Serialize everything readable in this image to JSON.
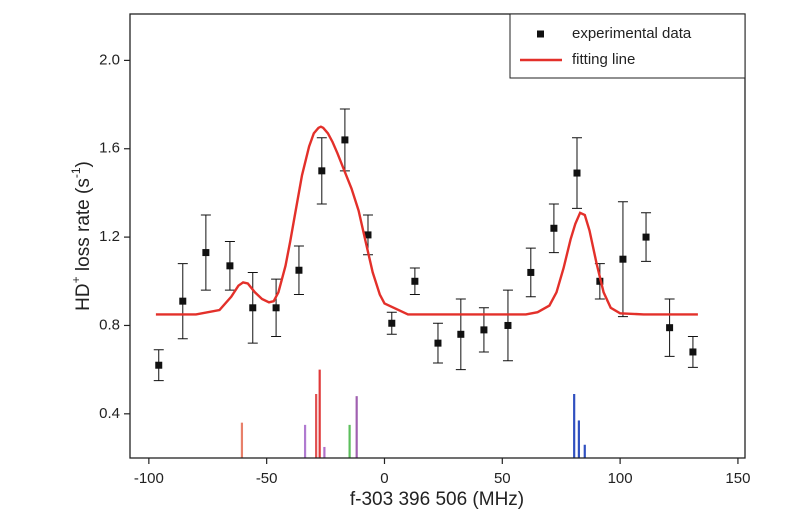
{
  "chart_data": {
    "type": "scatter",
    "xlabel": "f-303 396 506 (MHz)",
    "ylabel": [
      "HD",
      "+",
      " loss rate (s",
      "-1",
      ")"
    ],
    "xlim": [
      -108,
      153
    ],
    "ylim": [
      0.2,
      2.21
    ],
    "xticks": [
      -100,
      -50,
      0,
      50,
      100,
      150
    ],
    "yticks": [
      0.4,
      0.8,
      1.2,
      1.6,
      {
        "value": 2,
        "label": "2.0"
      }
    ],
    "legend": "upper right",
    "series": [
      {
        "name": "experimental data",
        "color": "#111111",
        "marker": "square",
        "x": [
          -95.8,
          -85.6,
          -75.8,
          -65.6,
          -55.9,
          -46,
          -36.3,
          -26.6,
          -16.8,
          -7,
          3.1,
          12.9,
          22.7,
          32.4,
          42.2,
          52.4,
          62.1,
          71.9,
          81.7,
          91.4,
          101.2,
          111,
          121,
          130.9
        ],
        "values": [
          0.62,
          0.91,
          1.13,
          1.07,
          0.88,
          0.88,
          1.05,
          1.5,
          1.64,
          1.21,
          0.81,
          1.0,
          0.72,
          0.76,
          0.78,
          0.8,
          1.04,
          1.24,
          1.49,
          1.0,
          1.1,
          1.2,
          0.79,
          0.68
        ],
        "errors": [
          0.07,
          0.17,
          0.17,
          0.11,
          0.16,
          0.13,
          0.11,
          0.15,
          0.14,
          0.09,
          0.05,
          0.06,
          0.09,
          0.16,
          0.1,
          0.16,
          0.11,
          0.11,
          0.16,
          0.08,
          0.26,
          0.11,
          0.13,
          0.07
        ]
      },
      {
        "name": "fitting line",
        "color": "#e3302a",
        "marker": "line",
        "x": [
          -97,
          -90,
          -80,
          -70,
          -65,
          -62,
          -60,
          -58,
          -55,
          -52,
          -49,
          -47,
          -45,
          -42,
          -40,
          -38,
          -35,
          -32,
          -30,
          -28,
          -27,
          -26,
          -24,
          -22,
          -20,
          -17,
          -14,
          -11,
          -8,
          -5,
          -2,
          0,
          10,
          30,
          50,
          60,
          65,
          70,
          73,
          76,
          79,
          81,
          83,
          85,
          87,
          90,
          93,
          96,
          100,
          110,
          133
        ],
        "values": [
          0.85,
          0.85,
          0.85,
          0.87,
          0.93,
          0.98,
          0.995,
          0.99,
          0.95,
          0.92,
          0.905,
          0.91,
          0.95,
          1.07,
          1.18,
          1.3,
          1.48,
          1.61,
          1.67,
          1.695,
          1.7,
          1.695,
          1.67,
          1.63,
          1.58,
          1.5,
          1.42,
          1.32,
          1.18,
          1.04,
          0.94,
          0.9,
          0.85,
          0.85,
          0.85,
          0.85,
          0.86,
          0.89,
          0.95,
          1.06,
          1.19,
          1.26,
          1.31,
          1.3,
          1.23,
          1.08,
          0.95,
          0.88,
          0.855,
          0.85,
          0.85
        ]
      }
    ],
    "sticks": {
      "x": [
        -60.5,
        -33.7,
        -29,
        -27.5,
        -25.5,
        -14.8,
        -11.8,
        80.5,
        82.5,
        85
      ],
      "values": [
        0.36,
        0.35,
        0.49,
        0.6,
        0.25,
        0.35,
        0.48,
        0.49,
        0.37,
        0.26
      ],
      "colors": [
        "#e8806a",
        "#b07ad0",
        "#e05050",
        "#e03838",
        "#b070c8",
        "#5cbf5c",
        "#a060b0",
        "#3050c0",
        "#3050c0",
        "#3050c0"
      ]
    }
  }
}
